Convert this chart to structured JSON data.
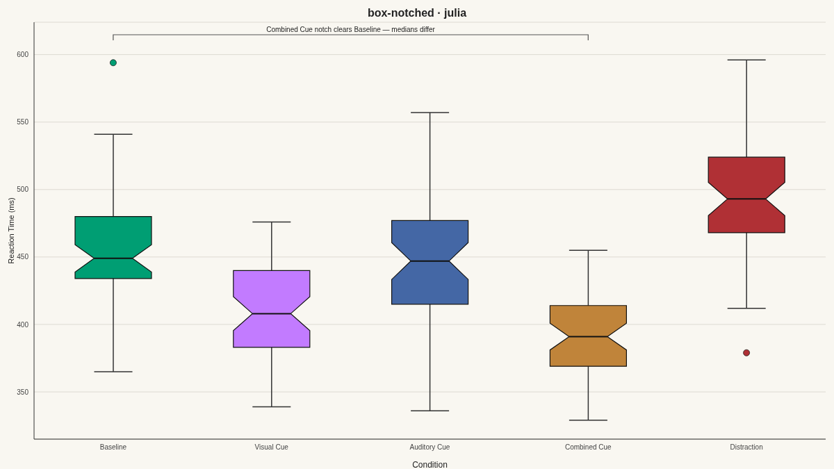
{
  "chart_data": {
    "type": "box",
    "title": "box-notched · julia",
    "xlabel": "Condition",
    "ylabel": "Reaction Time (ms)",
    "categories": [
      "Baseline",
      "Visual Cue",
      "Auditory Cue",
      "Combined Cue",
      "Distraction"
    ],
    "colors": [
      "#009e73",
      "#c27bff",
      "#4467a5",
      "#c0843a",
      "#b03035"
    ],
    "boxes": [
      {
        "low": 365,
        "q1": 434,
        "median": 449,
        "q3": 480,
        "high": 541,
        "outliers": [
          594
        ]
      },
      {
        "low": 339,
        "q1": 383,
        "median": 408,
        "q3": 440,
        "high": 476
      },
      {
        "low": 336,
        "q1": 415,
        "median": 447,
        "q3": 477,
        "high": 557
      },
      {
        "low": 329,
        "q1": 369,
        "median": 391,
        "q3": 414,
        "high": 455
      },
      {
        "low": 412,
        "q1": 468,
        "median": 493,
        "q3": 524,
        "high": 596,
        "outliers": [
          379
        ]
      }
    ],
    "ylim": [
      315,
      624
    ],
    "yticks": [
      350,
      400,
      450,
      500,
      550,
      600
    ],
    "grid": "y",
    "annotations": [
      "Combined Cue notch clears Baseline — medians differ"
    ]
  }
}
